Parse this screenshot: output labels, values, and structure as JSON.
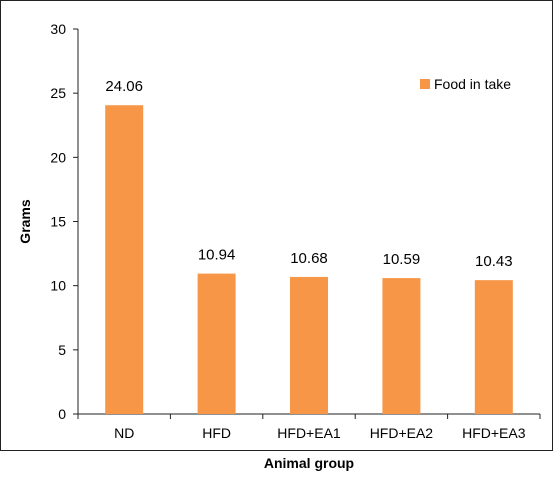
{
  "chart_data": {
    "type": "bar",
    "categories": [
      "ND",
      "HFD",
      "HFD+EA1",
      "HFD+EA2",
      "HFD+EA3"
    ],
    "series": [
      {
        "name": "Food in take",
        "values": [
          24.06,
          10.94,
          10.68,
          10.59,
          10.43
        ],
        "color": "#f79646"
      }
    ],
    "data_labels": [
      "24.06",
      "10.94",
      "10.68",
      "10.59",
      "10.43"
    ],
    "xlabel": "Animal group",
    "ylabel": "Grams",
    "ylim": [
      0,
      30
    ],
    "yticks": [
      0,
      5,
      10,
      15,
      20,
      25,
      30
    ],
    "grid": false,
    "legend_position": "top-right"
  }
}
